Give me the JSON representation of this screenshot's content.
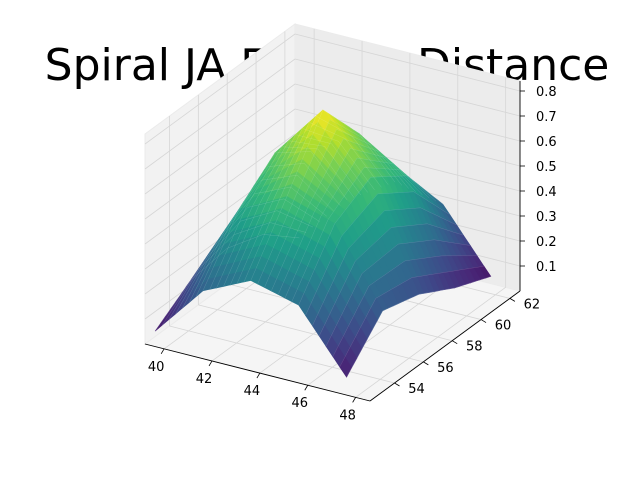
{
  "chart_data": {
    "type": "surface3d",
    "title": "Spiral JA Frechet Distance",
    "xlabel": "",
    "ylabel": "",
    "zlabel": "",
    "colormap": "viridis",
    "grid": true,
    "x": [
      39.5,
      41.5,
      43.5,
      45.5,
      47.5
    ],
    "y": [
      52.5,
      55,
      57.5,
      60,
      62.5
    ],
    "z": [
      [
        0.05,
        0.26,
        0.35,
        0.3,
        0.06
      ],
      [
        0.15,
        0.48,
        0.58,
        0.52,
        0.22
      ],
      [
        0.17,
        0.6,
        0.82,
        0.6,
        0.18
      ],
      [
        0.12,
        0.5,
        0.62,
        0.5,
        0.1
      ],
      [
        0.0,
        0.2,
        0.32,
        0.28,
        0.04
      ]
    ],
    "xlim": [
      39.2,
      48.6
    ],
    "ylim": [
      52.3,
      62.7
    ],
    "zlim": [
      0.0,
      0.84
    ],
    "x_ticks": [
      "40",
      "42",
      "44",
      "46",
      "48"
    ],
    "y_ticks": [
      "54",
      "56",
      "58",
      "60",
      "62"
    ],
    "z_ticks": [
      "0.1",
      "0.2",
      "0.3",
      "0.4",
      "0.5",
      "0.6",
      "0.7",
      "0.8"
    ],
    "colors": {
      "pane": "#f2f2f2",
      "pane_edge": "#ebebeb",
      "grid": "#d6d6d6",
      "axis": "#000000"
    }
  }
}
